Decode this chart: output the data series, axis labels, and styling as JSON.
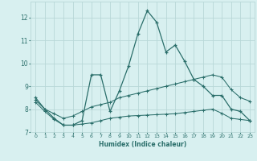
{
  "xlabel": "Humidex (Indice chaleur)",
  "bg_color": "#d8f0f0",
  "grid_color": "#b8d8d8",
  "line_color": "#2a6e6a",
  "x": [
    0,
    1,
    2,
    3,
    4,
    5,
    6,
    7,
    8,
    9,
    10,
    11,
    12,
    13,
    14,
    15,
    16,
    17,
    18,
    19,
    20,
    21,
    22,
    23
  ],
  "line1": [
    8.5,
    8.0,
    7.6,
    7.3,
    7.3,
    7.5,
    9.5,
    9.5,
    7.9,
    8.8,
    9.9,
    11.3,
    12.3,
    11.8,
    10.5,
    10.8,
    10.1,
    9.3,
    9.0,
    8.6,
    8.6,
    8.0,
    7.9,
    7.5
  ],
  "line2": [
    8.4,
    8.0,
    7.8,
    7.6,
    7.7,
    7.9,
    8.1,
    8.2,
    8.3,
    8.5,
    8.6,
    8.7,
    8.8,
    8.9,
    9.0,
    9.1,
    9.2,
    9.3,
    9.4,
    9.5,
    9.4,
    8.85,
    8.5,
    8.35
  ],
  "line3": [
    8.3,
    7.9,
    7.55,
    7.3,
    7.3,
    7.35,
    7.4,
    7.5,
    7.6,
    7.65,
    7.7,
    7.72,
    7.74,
    7.76,
    7.78,
    7.8,
    7.85,
    7.9,
    7.95,
    8.0,
    7.82,
    7.6,
    7.55,
    7.5
  ],
  "ylim": [
    7.0,
    12.7
  ],
  "xlim": [
    -0.5,
    23.5
  ],
  "yticks": [
    7,
    8,
    9,
    10,
    11,
    12
  ],
  "xticks": [
    0,
    1,
    2,
    3,
    4,
    5,
    6,
    7,
    8,
    9,
    10,
    11,
    12,
    13,
    14,
    15,
    16,
    17,
    18,
    19,
    20,
    21,
    22,
    23
  ]
}
